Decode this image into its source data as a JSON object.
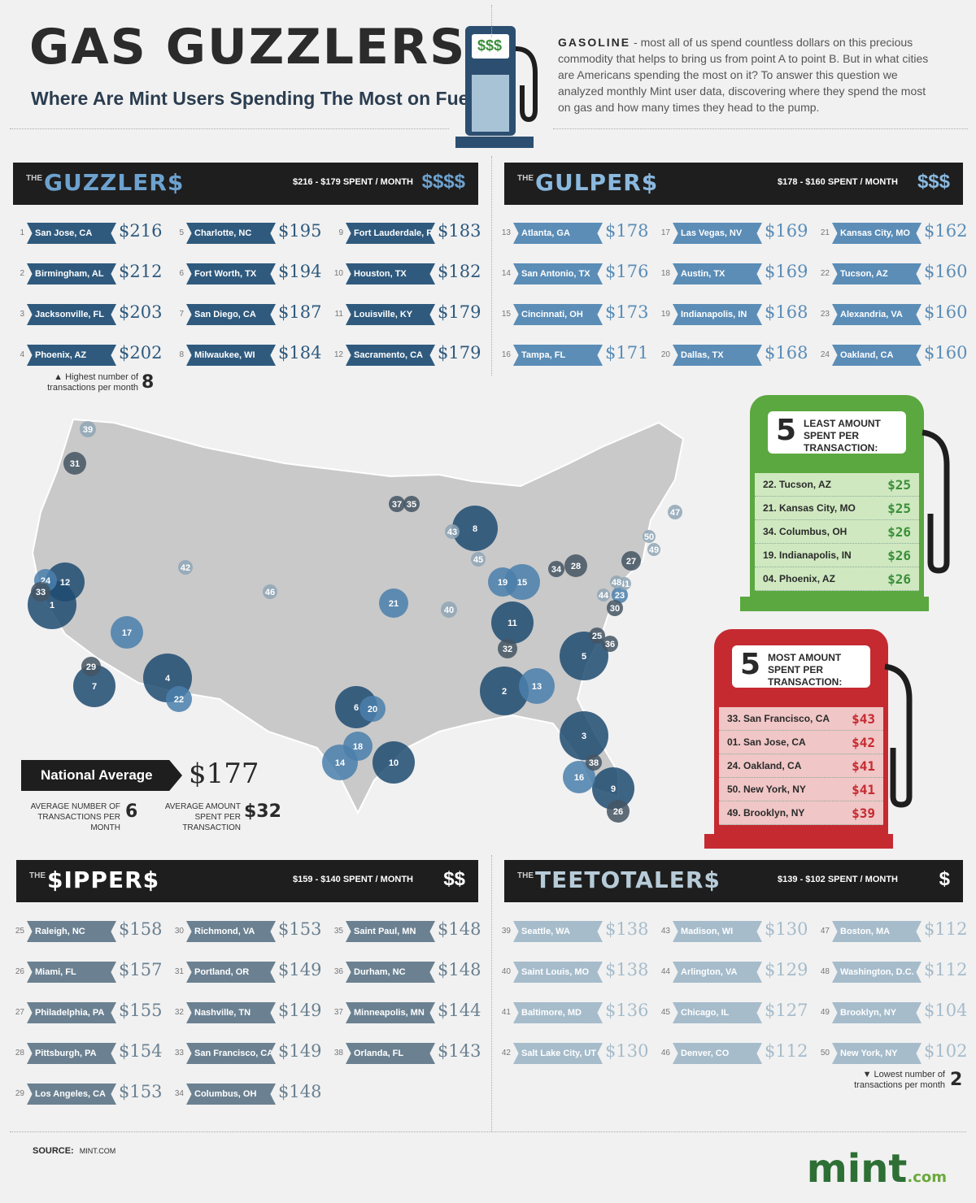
{
  "header": {
    "title": "GAS GUZZLERS",
    "subtitle": "Where Are Mint Users Spending The Most on Fuel?",
    "pump_sign": "$$$",
    "intro_lead": "GASOLINE",
    "intro_text": "- most all of us spend countless dollars on this precious commodity that helps to bring us from point A to point B. But in what cities are Americans spending the most on it? To answer this question we analyzed monthly Mint user data, discovering where they spend the most on gas and how many times they head to the pump."
  },
  "groups": {
    "guzzlers": {
      "the": "THE",
      "name": "GUZZLER$",
      "range": "$216 - $179  SPENT / MONTH",
      "sign": "$$$$",
      "color": "#2f5a7e",
      "items": [
        {
          "rank": "1",
          "city": "San Jose, CA",
          "amount": "$216"
        },
        {
          "rank": "2",
          "city": "Birmingham, AL",
          "amount": "$212"
        },
        {
          "rank": "3",
          "city": "Jacksonville, FL",
          "amount": "$203"
        },
        {
          "rank": "4",
          "city": "Phoenix, AZ",
          "amount": "$202"
        },
        {
          "rank": "5",
          "city": "Charlotte, NC",
          "amount": "$195"
        },
        {
          "rank": "6",
          "city": "Fort Worth, TX",
          "amount": "$194"
        },
        {
          "rank": "7",
          "city": "San Diego, CA",
          "amount": "$187"
        },
        {
          "rank": "8",
          "city": "Milwaukee, WI",
          "amount": "$184"
        },
        {
          "rank": "9",
          "city": "Fort Lauderdale, FL",
          "amount": "$183"
        },
        {
          "rank": "10",
          "city": "Houston, TX",
          "amount": "$182"
        },
        {
          "rank": "11",
          "city": "Louisville, KY",
          "amount": "$179"
        },
        {
          "rank": "12",
          "city": "Sacramento, CA",
          "amount": "$179"
        }
      ],
      "note_text": "▲ Highest number of transactions per month",
      "note_value": "8"
    },
    "gulpers": {
      "the": "THE",
      "name": "GULPER$",
      "range": "$178 - $160  SPENT / MONTH",
      "sign": "$$$",
      "color": "#5b8db7",
      "items": [
        {
          "rank": "13",
          "city": "Atlanta, GA",
          "amount": "$178"
        },
        {
          "rank": "14",
          "city": "San Antonio, TX",
          "amount": "$176"
        },
        {
          "rank": "15",
          "city": "Cincinnati, OH",
          "amount": "$173"
        },
        {
          "rank": "16",
          "city": "Tampa, FL",
          "amount": "$171"
        },
        {
          "rank": "17",
          "city": "Las Vegas, NV",
          "amount": "$169"
        },
        {
          "rank": "18",
          "city": "Austin, TX",
          "amount": "$169"
        },
        {
          "rank": "19",
          "city": "Indianapolis, IN",
          "amount": "$168"
        },
        {
          "rank": "20",
          "city": "Dallas, TX",
          "amount": "$168"
        },
        {
          "rank": "21",
          "city": "Kansas City, MO",
          "amount": "$162"
        },
        {
          "rank": "22",
          "city": "Tucson, AZ",
          "amount": "$160"
        },
        {
          "rank": "23",
          "city": "Alexandria, VA",
          "amount": "$160"
        },
        {
          "rank": "24",
          "city": "Oakland, CA",
          "amount": "$160"
        }
      ]
    },
    "sippers": {
      "the": "THE",
      "name": "$IPPER$",
      "range": "$159 - $140  SPENT / MONTH",
      "sign": "$$",
      "color": "#6b8191",
      "items": [
        {
          "rank": "25",
          "city": "Raleigh, NC",
          "amount": "$158"
        },
        {
          "rank": "26",
          "city": "Miami, FL",
          "amount": "$157"
        },
        {
          "rank": "27",
          "city": "Philadelphia, PA",
          "amount": "$155"
        },
        {
          "rank": "28",
          "city": "Pittsburgh, PA",
          "amount": "$154"
        },
        {
          "rank": "29",
          "city": "Los Angeles, CA",
          "amount": "$153"
        },
        {
          "rank": "30",
          "city": "Richmond, VA",
          "amount": "$153"
        },
        {
          "rank": "31",
          "city": "Portland, OR",
          "amount": "$149"
        },
        {
          "rank": "32",
          "city": "Nashville, TN",
          "amount": "$149"
        },
        {
          "rank": "33",
          "city": "San Francisco, CA",
          "amount": "$149"
        },
        {
          "rank": "34",
          "city": "Columbus, OH",
          "amount": "$148"
        },
        {
          "rank": "35",
          "city": "Saint Paul, MN",
          "amount": "$148"
        },
        {
          "rank": "36",
          "city": "Durham, NC",
          "amount": "$148"
        },
        {
          "rank": "37",
          "city": "Minneapolis, MN",
          "amount": "$144"
        },
        {
          "rank": "38",
          "city": "Orlanda, FL",
          "amount": "$143"
        }
      ]
    },
    "teetotalers": {
      "the": "THE",
      "name": "TEETOTALER$",
      "range": "$139 - $102  SPENT / MONTH",
      "sign": "$",
      "color": "#a6bccb",
      "items": [
        {
          "rank": "39",
          "city": "Seattle, WA",
          "amount": "$138"
        },
        {
          "rank": "40",
          "city": "Saint Louis, MO",
          "amount": "$138"
        },
        {
          "rank": "41",
          "city": "Baltimore, MD",
          "amount": "$136"
        },
        {
          "rank": "42",
          "city": "Salt Lake City, UT",
          "amount": "$130"
        },
        {
          "rank": "43",
          "city": "Madison, WI",
          "amount": "$130"
        },
        {
          "rank": "44",
          "city": "Arlington, VA",
          "amount": "$129"
        },
        {
          "rank": "45",
          "city": "Chicago, IL",
          "amount": "$127"
        },
        {
          "rank": "46",
          "city": "Denver, CO",
          "amount": "$112"
        },
        {
          "rank": "47",
          "city": "Boston, MA",
          "amount": "$112"
        },
        {
          "rank": "48",
          "city": "Washington, D.C.",
          "amount": "$112"
        },
        {
          "rank": "49",
          "city": "Brooklyn, NY",
          "amount": "$104"
        },
        {
          "rank": "50",
          "city": "New York, NY",
          "amount": "$102"
        }
      ],
      "note_text": "▼ Lowest number of transactions per month",
      "note_value": "2"
    }
  },
  "least_pump": {
    "number": "5",
    "title": "LEAST AMOUNT SPENT PER TRANSACTION:",
    "items": [
      {
        "city": "22. Tucson, AZ",
        "amount": "$25"
      },
      {
        "city": "21. Kansas City, MO",
        "amount": "$25"
      },
      {
        "city": "34. Columbus, OH",
        "amount": "$26"
      },
      {
        "city": "19. Indianapolis, IN",
        "amount": "$26"
      },
      {
        "city": "04. Phoenix, AZ",
        "amount": "$26"
      }
    ]
  },
  "most_pump": {
    "number": "5",
    "title": "MOST AMOUNT SPENT PER TRANSACTION:",
    "items": [
      {
        "city": "33. San Francisco, CA",
        "amount": "$43"
      },
      {
        "city": "01. San Jose, CA",
        "amount": "$42"
      },
      {
        "city": "24. Oakland, CA",
        "amount": "$41"
      },
      {
        "city": "50. New York, NY",
        "amount": "$41"
      },
      {
        "city": "49. Brooklyn, NY",
        "amount": "$39"
      }
    ]
  },
  "national": {
    "label": "National Average",
    "value": "$177",
    "tx_label": "AVERAGE NUMBER OF TRANSACTIONS PER MONTH",
    "tx_value": "6",
    "spend_label": "AVERAGE AMOUNT SPENT PER TRANSACTION",
    "spend_value": "$32"
  },
  "map_markers": [
    "1",
    "2",
    "3",
    "4",
    "5",
    "6",
    "7",
    "8",
    "9",
    "10",
    "11",
    "12",
    "13",
    "14",
    "15",
    "16",
    "17",
    "18",
    "19",
    "20",
    "21",
    "22",
    "23",
    "24",
    "25",
    "26",
    "27",
    "28",
    "29",
    "30",
    "31",
    "32",
    "33",
    "34",
    "35",
    "36",
    "37",
    "38",
    "39",
    "40",
    "41",
    "42",
    "43",
    "44",
    "45",
    "46",
    "47",
    "48",
    "49",
    "50"
  ],
  "footer": {
    "source_label": "SOURCE:",
    "source_value": "MINT.COM",
    "logo": "mint",
    "logo_suffix": ".com"
  }
}
